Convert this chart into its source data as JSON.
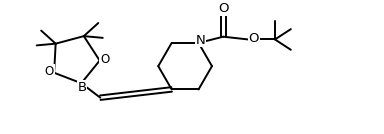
{
  "bg_color": "#ffffff",
  "bond_color": "#000000",
  "text_color": "#000000",
  "line_width": 1.4,
  "font_size": 8.5,
  "xlim": [
    0.0,
    10.5
  ],
  "ylim": [
    0.2,
    4.0
  ]
}
